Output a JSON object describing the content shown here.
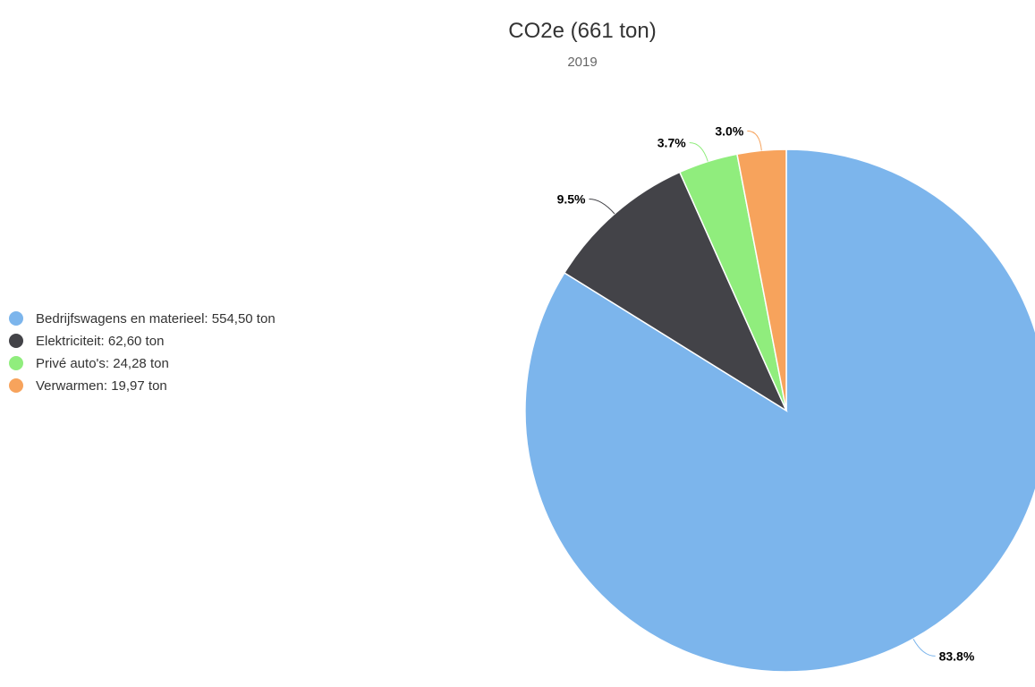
{
  "chart_data": {
    "type": "pie",
    "title": "CO2e (661 ton)",
    "subtitle": "2019",
    "categories": [
      "Bedrijfswagens en materieel",
      "Elektriciteit",
      "Privé auto's",
      "Verwarmen"
    ],
    "values": [
      554.5,
      62.6,
      24.28,
      19.97
    ],
    "unit": "ton",
    "legend_labels": [
      "Bedrijfswagens en materieel: 554,50 ton",
      "Elektriciteit: 62,60 ton",
      "Privé auto's: 24,28 ton",
      "Verwarmen: 19,97 ton"
    ],
    "data_labels": [
      "83.8%",
      "9.5%",
      "3.7%",
      "3.0%"
    ],
    "colors": [
      "#7cb5ec",
      "#434348",
      "#90ed7d",
      "#f7a35c"
    ],
    "legend_position": "left"
  }
}
